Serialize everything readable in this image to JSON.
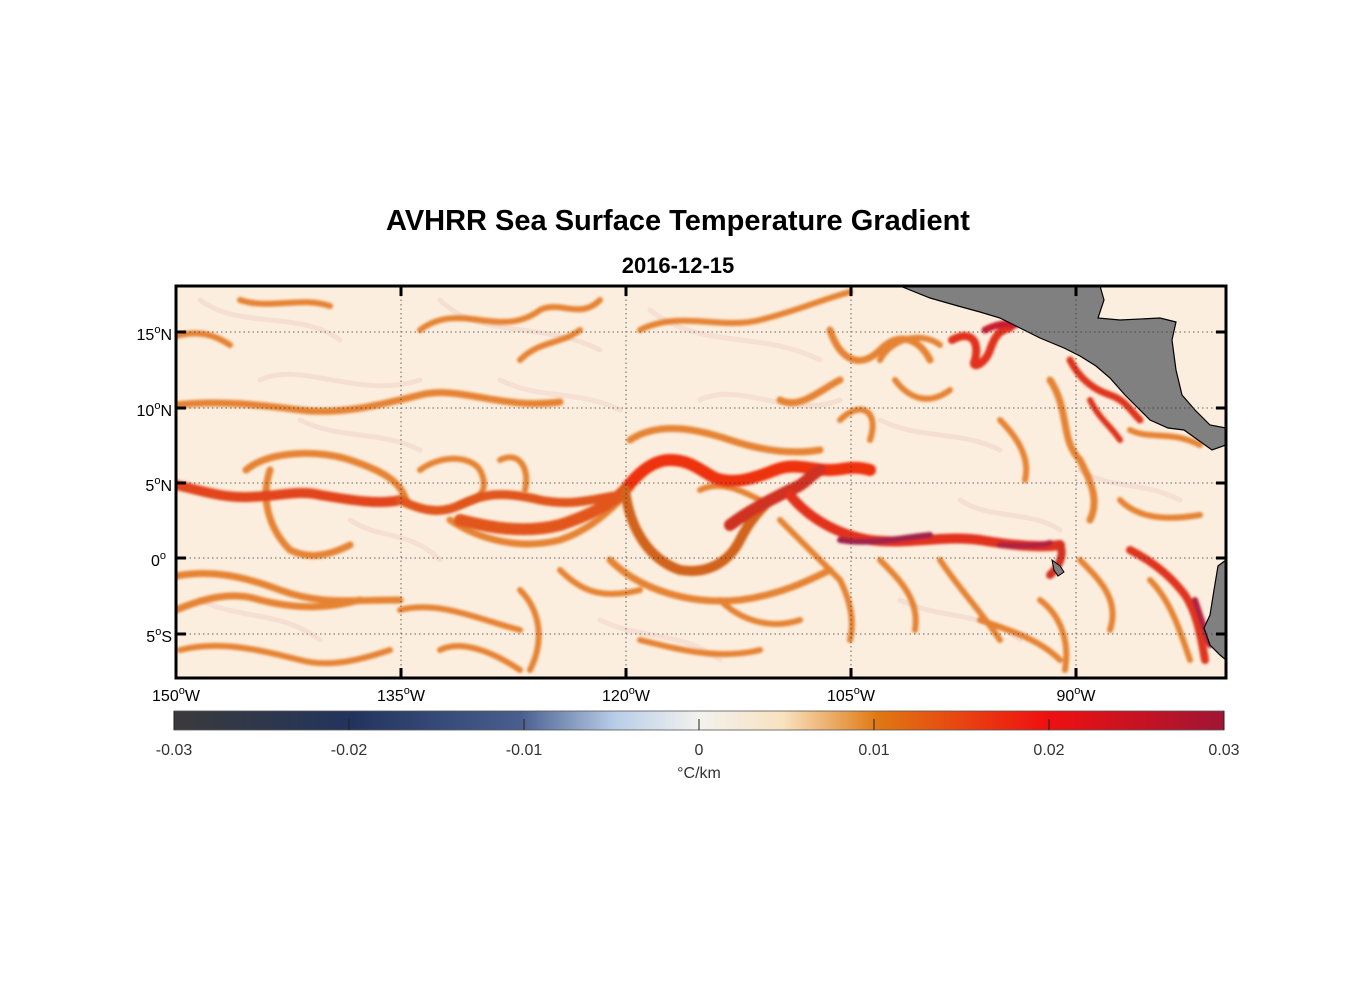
{
  "title": "AVHRR Sea Surface Temperature Gradient",
  "subtitle": "2016-12-15",
  "map": {
    "lon_range": [
      -150,
      -80
    ],
    "lat_range": [
      -8,
      18
    ],
    "lon_ticks": [
      {
        "value": -150,
        "label": "150",
        "sup": "o",
        "hemi": "W"
      },
      {
        "value": -135,
        "label": "135",
        "sup": "o",
        "hemi": "W"
      },
      {
        "value": -120,
        "label": "120",
        "sup": "o",
        "hemi": "W"
      },
      {
        "value": -105,
        "label": "105",
        "sup": "o",
        "hemi": "W"
      },
      {
        "value": -90,
        "label": "90",
        "sup": "o",
        "hemi": "W"
      }
    ],
    "lat_ticks": [
      {
        "value": 15,
        "label": "15",
        "sup": "o",
        "hemi": "N"
      },
      {
        "value": 10,
        "label": "10",
        "sup": "o",
        "hemi": "N"
      },
      {
        "value": 5,
        "label": "5",
        "sup": "o",
        "hemi": "N"
      },
      {
        "value": 0,
        "label": "0",
        "sup": "o",
        "hemi": ""
      },
      {
        "value": -5,
        "label": "5",
        "sup": "o",
        "hemi": "S"
      }
    ],
    "grid": "dotted",
    "land_color": "#808080"
  },
  "colorbar": {
    "min": -0.03,
    "max": 0.03,
    "ticks": [
      "-0.03",
      "-0.02",
      "-0.01",
      "0",
      "0.01",
      "0.02",
      "0.03"
    ],
    "unit": "°C/km",
    "colors": {
      "neg_max": "#3a3a3a",
      "neg_mid": "#22345e",
      "neg_low": "#b8cde8",
      "zero": "#f2f2ee",
      "pos_low": "#f8e2c0",
      "pos_mid": "#e07812",
      "pos_high": "#f01010",
      "pos_max": "#a01535"
    }
  }
}
